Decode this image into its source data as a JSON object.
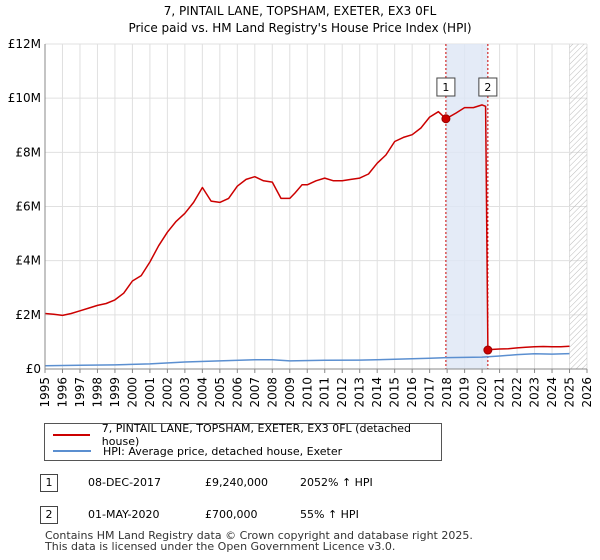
{
  "chart_data": {
    "type": "line",
    "title": "7, PINTAIL LANE, TOPSHAM, EXETER, EX3 0FL",
    "subtitle": "Price paid vs. HM Land Registry's House Price Index (HPI)",
    "xlim": [
      1995,
      2026
    ],
    "ylim": [
      0,
      12000000
    ],
    "x_ticks": [
      "1995",
      "1996",
      "1997",
      "1998",
      "1999",
      "2000",
      "2001",
      "2002",
      "2003",
      "2004",
      "2005",
      "2006",
      "2007",
      "2008",
      "2009",
      "2010",
      "2011",
      "2012",
      "2013",
      "2014",
      "2015",
      "2016",
      "2017",
      "2018",
      "2019",
      "2020",
      "2021",
      "2022",
      "2023",
      "2024",
      "2025",
      "2026"
    ],
    "y_ticks": [
      {
        "label": "£0",
        "value": 0
      },
      {
        "label": "£2M",
        "value": 2000000
      },
      {
        "label": "£4M",
        "value": 4000000
      },
      {
        "label": "£6M",
        "value": 6000000
      },
      {
        "label": "£8M",
        "value": 8000000
      },
      {
        "label": "£10M",
        "value": 10000000
      },
      {
        "label": "£12M",
        "value": 12000000
      }
    ],
    "grid": true,
    "series": [
      {
        "name": "7, PINTAIL LANE, TOPSHAM, EXETER, EX3 0FL (detached house)",
        "color": "#cc0000",
        "x": [
          1995.0,
          1995.5,
          1996.0,
          1996.5,
          1997.0,
          1997.5,
          1998.0,
          1998.5,
          1999.0,
          1999.5,
          2000.0,
          2000.5,
          2001.0,
          2001.5,
          2002.0,
          2002.5,
          2003.0,
          2003.5,
          2004.0,
          2004.5,
          2005.0,
          2005.5,
          2006.0,
          2006.5,
          2007.0,
          2007.5,
          2008.0,
          2008.5,
          2009.0,
          2009.3,
          2009.7,
          2010.0,
          2010.5,
          2011.0,
          2011.5,
          2012.0,
          2012.5,
          2013.0,
          2013.5,
          2014.0,
          2014.5,
          2015.0,
          2015.5,
          2016.0,
          2016.5,
          2017.0,
          2017.5,
          2017.93,
          2018.5,
          2019.0,
          2019.5,
          2020.0,
          2020.2,
          2020.33,
          2020.5,
          2021.0,
          2021.5,
          2022.0,
          2022.5,
          2023.0,
          2023.5,
          2024.0,
          2024.5,
          2025.0
        ],
        "y": [
          2050000,
          2020000,
          1980000,
          2050000,
          2150000,
          2250000,
          2350000,
          2420000,
          2550000,
          2800000,
          3250000,
          3450000,
          3950000,
          4550000,
          5050000,
          5450000,
          5750000,
          6150000,
          6700000,
          6200000,
          6150000,
          6300000,
          6750000,
          7000000,
          7100000,
          6950000,
          6900000,
          6300000,
          6300000,
          6500000,
          6800000,
          6800000,
          6950000,
          7050000,
          6950000,
          6950000,
          7000000,
          7050000,
          7200000,
          7600000,
          7900000,
          8400000,
          8550000,
          8650000,
          8900000,
          9300000,
          9500000,
          9240000,
          9450000,
          9650000,
          9650000,
          9750000,
          9700000,
          700000,
          720000,
          740000,
          750000,
          780000,
          800000,
          820000,
          830000,
          820000,
          820000,
          840000
        ]
      },
      {
        "name": "HPI: Average price, detached house, Exeter",
        "color": "#5b8fd0",
        "x": [
          1995,
          1997,
          1999,
          2001,
          2003,
          2005,
          2007,
          2008,
          2009,
          2011,
          2013,
          2015,
          2017,
          2018,
          2019,
          2020,
          2021,
          2022,
          2023,
          2024,
          2025
        ],
        "y": [
          120000,
          135000,
          150000,
          190000,
          260000,
          300000,
          340000,
          345000,
          300000,
          320000,
          330000,
          360000,
          400000,
          420000,
          430000,
          440000,
          480000,
          530000,
          560000,
          550000,
          570000
        ]
      }
    ],
    "sales": [
      {
        "label": "1",
        "date": "08-DEC-2017",
        "x": 2017.93,
        "price": 9240000,
        "price_text": "£9,240,000",
        "pct": "2052% ↑ HPI"
      },
      {
        "label": "2",
        "date": "01-MAY-2020",
        "x": 2020.33,
        "price": 700000,
        "price_text": "£700,000",
        "pct": "55% ↑ HPI"
      }
    ],
    "shaded_range": [
      2017.93,
      2020.33
    ],
    "hatched_from": 2025.0
  },
  "footer": {
    "line1": "Contains HM Land Registry data © Crown copyright and database right 2025.",
    "line2": "This data is licensed under the Open Government Licence v3.0."
  }
}
